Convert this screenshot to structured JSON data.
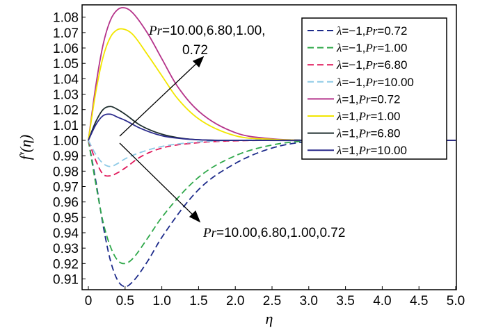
{
  "chart_data": {
    "type": "line",
    "xlabel": "η",
    "ylabel_main": "f′",
    "ylabel_arg": "(η)",
    "xlim": [
      0,
      5.0
    ],
    "ylim": [
      0.903,
      1.088
    ],
    "x_ticks": [
      "0",
      "0.5",
      "1.0",
      "1.5",
      "2.0",
      "2.5",
      "3.0",
      "3.5",
      "4.0",
      "4.5",
      "5.0"
    ],
    "y_ticks": [
      "0.91",
      "0.92",
      "0.93",
      "0.94",
      "0.95",
      "0.96",
      "0.97",
      "0.98",
      "0.99",
      "1.00",
      "1.01",
      "1.02",
      "1.03",
      "1.04",
      "1.05",
      "1.06",
      "1.07",
      "1.08"
    ],
    "legend_position": "top-right",
    "series": [
      {
        "lambda": "−1",
        "pr": "0.72",
        "color": "#1c2a8a",
        "dash": "9,5",
        "points": [
          [
            0,
            1.0
          ],
          [
            0.1,
            0.974
          ],
          [
            0.2,
            0.945
          ],
          [
            0.3,
            0.922
          ],
          [
            0.4,
            0.909
          ],
          [
            0.5,
            0.905
          ],
          [
            0.6,
            0.908
          ],
          [
            0.8,
            0.921
          ],
          [
            1.0,
            0.937
          ],
          [
            1.5,
            0.968
          ],
          [
            2.0,
            0.985
          ],
          [
            2.5,
            0.995
          ],
          [
            3.0,
            0.9993
          ],
          [
            3.5,
            1.0
          ],
          [
            5.0,
            1.0
          ]
        ]
      },
      {
        "lambda": "−1",
        "pr": "1.00",
        "color": "#2fa84a",
        "dash": "9,5",
        "points": [
          [
            0,
            1.0
          ],
          [
            0.1,
            0.972
          ],
          [
            0.2,
            0.947
          ],
          [
            0.3,
            0.931
          ],
          [
            0.4,
            0.922
          ],
          [
            0.5,
            0.92
          ],
          [
            0.6,
            0.923
          ],
          [
            0.8,
            0.936
          ],
          [
            1.0,
            0.95
          ],
          [
            1.5,
            0.976
          ],
          [
            2.0,
            0.99
          ],
          [
            2.5,
            0.997
          ],
          [
            3.0,
            0.9997
          ],
          [
            3.5,
            1.0
          ],
          [
            5.0,
            1.0
          ]
        ]
      },
      {
        "lambda": "−1",
        "pr": "6.80",
        "color": "#e0185a",
        "dash": "9,5",
        "points": [
          [
            0,
            1.0
          ],
          [
            0.1,
            0.987
          ],
          [
            0.2,
            0.978
          ],
          [
            0.3,
            0.977
          ],
          [
            0.4,
            0.979
          ],
          [
            0.5,
            0.982
          ],
          [
            0.7,
            0.989
          ],
          [
            1.0,
            0.995
          ],
          [
            1.5,
            0.9985
          ],
          [
            2.0,
            0.9997
          ],
          [
            2.5,
            1.0
          ],
          [
            5.0,
            1.0
          ]
        ]
      },
      {
        "lambda": "−1",
        "pr": "10.00",
        "color": "#8ecae6",
        "dash": "9,5",
        "points": [
          [
            0,
            1.0
          ],
          [
            0.1,
            0.991
          ],
          [
            0.2,
            0.985
          ],
          [
            0.3,
            0.983
          ],
          [
            0.4,
            0.985
          ],
          [
            0.5,
            0.988
          ],
          [
            0.7,
            0.992
          ],
          [
            1.0,
            0.996
          ],
          [
            1.5,
            0.999
          ],
          [
            2.0,
            1.0
          ],
          [
            5.0,
            1.0
          ]
        ]
      },
      {
        "lambda": "1",
        "pr": "0.72",
        "color": "#b5338a",
        "dash": "",
        "points": [
          [
            0,
            1.0
          ],
          [
            0.1,
            1.035
          ],
          [
            0.2,
            1.062
          ],
          [
            0.3,
            1.078
          ],
          [
            0.4,
            1.085
          ],
          [
            0.5,
            1.086
          ],
          [
            0.6,
            1.083
          ],
          [
            0.8,
            1.07
          ],
          [
            1.0,
            1.053
          ],
          [
            1.2,
            1.036
          ],
          [
            1.5,
            1.019
          ],
          [
            2.0,
            1.005
          ],
          [
            2.5,
            1.001
          ],
          [
            3.0,
            1.0
          ],
          [
            5.0,
            1.0
          ]
        ]
      },
      {
        "lambda": "1",
        "pr": "1.00",
        "color": "#f2e600",
        "dash": "",
        "points": [
          [
            0,
            1.0
          ],
          [
            0.1,
            1.031
          ],
          [
            0.2,
            1.054
          ],
          [
            0.3,
            1.067
          ],
          [
            0.4,
            1.072
          ],
          [
            0.5,
            1.072
          ],
          [
            0.6,
            1.069
          ],
          [
            0.8,
            1.056
          ],
          [
            1.0,
            1.042
          ],
          [
            1.2,
            1.028
          ],
          [
            1.5,
            1.014
          ],
          [
            2.0,
            1.003
          ],
          [
            2.5,
            1.0007
          ],
          [
            3.0,
            1.0
          ],
          [
            5.0,
            1.0
          ]
        ]
      },
      {
        "lambda": "1",
        "pr": "6.80",
        "color": "#1e2e2e",
        "dash": "",
        "points": [
          [
            0,
            1.0
          ],
          [
            0.1,
            1.012
          ],
          [
            0.2,
            1.02
          ],
          [
            0.3,
            1.022
          ],
          [
            0.4,
            1.02
          ],
          [
            0.5,
            1.017
          ],
          [
            0.7,
            1.01
          ],
          [
            1.0,
            1.004
          ],
          [
            1.3,
            1.0012
          ],
          [
            1.6,
            1.0002
          ],
          [
            2.0,
            1.0
          ],
          [
            5.0,
            1.0
          ]
        ]
      },
      {
        "lambda": "1",
        "pr": "10.00",
        "color": "#2a2a8c",
        "dash": "",
        "points": [
          [
            0,
            1.0
          ],
          [
            0.1,
            1.01
          ],
          [
            0.2,
            1.016
          ],
          [
            0.3,
            1.017
          ],
          [
            0.4,
            1.015
          ],
          [
            0.5,
            1.013
          ],
          [
            0.7,
            1.008
          ],
          [
            1.0,
            1.003
          ],
          [
            1.3,
            1.001
          ],
          [
            1.6,
            1.0002
          ],
          [
            2.0,
            1.0
          ],
          [
            5.0,
            1.0
          ]
        ]
      }
    ],
    "legend_lambda_symbol": "λ",
    "legend_pr_symbol": "Pr",
    "annotations": [
      {
        "pr_symbol": "Pr",
        "line1": "=10.00,6.80,1.00,",
        "line2": "0.72"
      },
      {
        "pr_symbol": "Pr",
        "line1": "=10.00,6.80,1.00,0.72"
      }
    ]
  }
}
